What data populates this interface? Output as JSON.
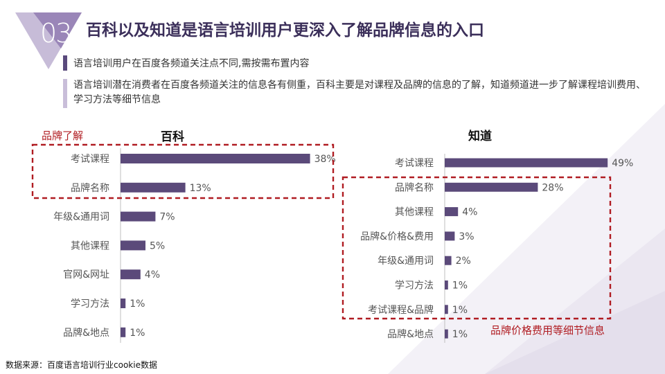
{
  "header": {
    "badge_number": "03",
    "title": "百科以及知道是语言培训用户更深入了解品牌信息的入口"
  },
  "bullets": [
    "语言培训用户在百度各频道关注点不同,需按需布置内容",
    "语言培训潜在消费者在百度各频道关注的信息各有侧重，百科主要是对课程及品牌的信息的了解，知道频道进一步了解课程培训费用、学习方法等细节信息"
  ],
  "annotations": {
    "left_box_label": "品牌了解",
    "right_box_label": "品牌价格费用等细节信息"
  },
  "source": "数据来源：百度语言培训行业cookie数据",
  "colors": {
    "bar": "#5b4a7a",
    "accent": "#b01c22",
    "title": "#3b2f5a"
  },
  "chart_data": [
    {
      "type": "bar",
      "orientation": "horizontal",
      "title": "百科",
      "categories": [
        "考试课程",
        "品牌名称",
        "年级&通用词",
        "其他课程",
        "官网&网址",
        "学习方法",
        "品牌&地点"
      ],
      "values": [
        38,
        13,
        7,
        5,
        4,
        1,
        1
      ],
      "value_labels": [
        "38%",
        "13%",
        "7%",
        "5%",
        "4%",
        "1%",
        "1%"
      ],
      "unit": "%"
    },
    {
      "type": "bar",
      "orientation": "horizontal",
      "title": "知道",
      "categories": [
        "考试课程",
        "品牌名称",
        "其他课程",
        "品牌&价格&费用",
        "年级&通用词",
        "学习方法",
        "考试课程&品牌",
        "品牌&地点"
      ],
      "values": [
        49,
        28,
        4,
        3,
        2,
        1,
        1,
        1
      ],
      "value_labels": [
        "49%",
        "28%",
        "4%",
        "3%",
        "2%",
        "1%",
        "1%",
        "1%"
      ],
      "unit": "%"
    }
  ]
}
